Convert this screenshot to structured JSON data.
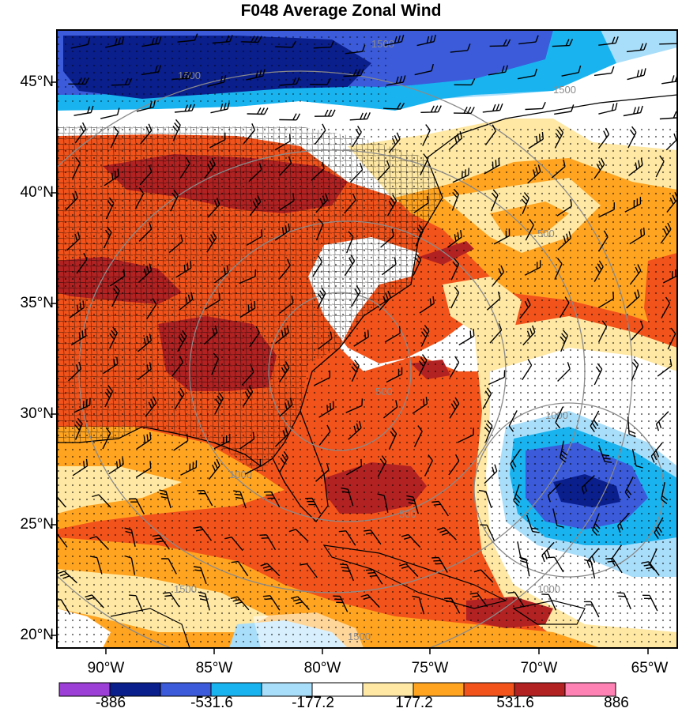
{
  "title": "F048 Average Zonal Wind",
  "lat_labels": [
    "45°N",
    "40°N",
    "35°N",
    "30°N",
    "25°N",
    "20°N"
  ],
  "lon_labels": [
    "90°W",
    "85°W",
    "80°W",
    "75°W",
    "70°W",
    "65°W"
  ],
  "contour_labels": [
    "1500",
    "1500",
    "1500",
    "500",
    "1000",
    "1000",
    "500",
    "1000",
    "1500",
    "500",
    "1500"
  ],
  "colorbar": {
    "colors": [
      "#9b3fd6",
      "#0a1e8c",
      "#3b5bdb",
      "#19b4f0",
      "#a9defa",
      "#ffffff",
      "#ffe8a3",
      "#ffa421",
      "#f2531b",
      "#b22222",
      "#ff82b4"
    ],
    "labels": [
      "-886",
      "-531.6",
      "-177.2",
      "177.2",
      "531.6",
      "886"
    ]
  },
  "legend_colors": {
    "stippling": "#000000",
    "frame": "#000000"
  }
}
